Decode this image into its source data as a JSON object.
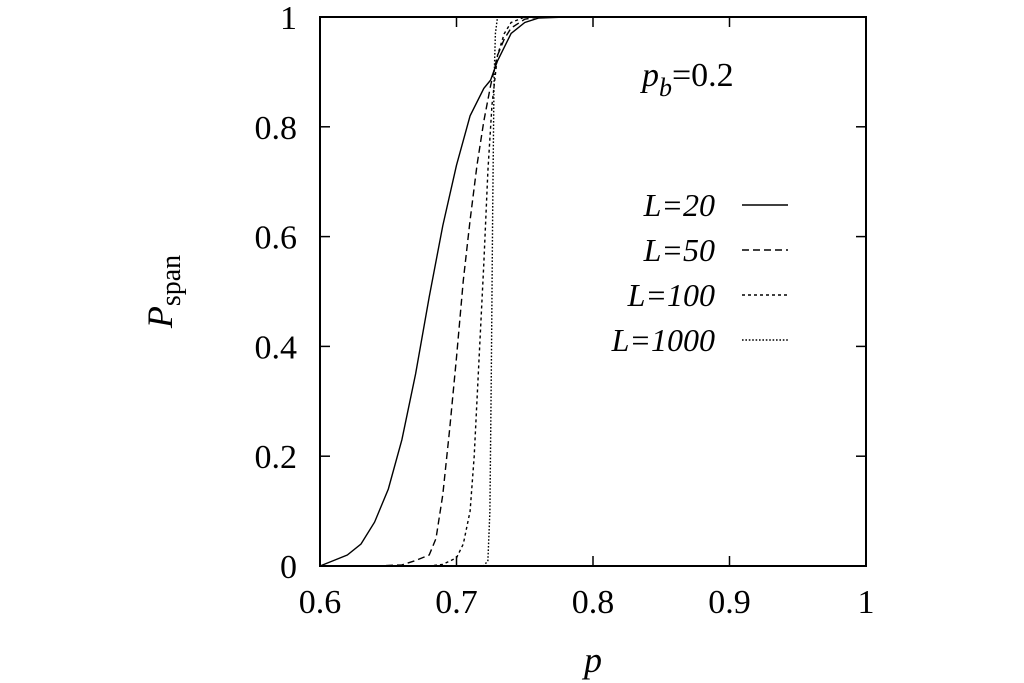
{
  "chart_data": {
    "type": "line",
    "title": "",
    "xlabel": "p",
    "ylabel": "P",
    "ylabel_sub": "span",
    "xlim": [
      0.6,
      1.0
    ],
    "ylim": [
      0,
      1
    ],
    "x_ticks": [
      0.6,
      0.7,
      0.8,
      0.9,
      1.0
    ],
    "x_tick_labels": [
      "0.6",
      "0.7",
      "0.8",
      "0.9",
      "1"
    ],
    "y_ticks": [
      0,
      0.2,
      0.4,
      0.6,
      0.8,
      1.0
    ],
    "y_tick_labels": [
      "0",
      "0.2",
      "0.4",
      "0.6",
      "0.8",
      "1"
    ],
    "grid": false,
    "legend_position": "top-right",
    "annotation": {
      "prefix": "p",
      "sub": "b",
      "suffix": "=0.2"
    },
    "series": [
      {
        "name": "L=20",
        "dash": "solid",
        "x": [
          0.6,
          0.61,
          0.62,
          0.63,
          0.64,
          0.65,
          0.66,
          0.67,
          0.68,
          0.69,
          0.7,
          0.71,
          0.72,
          0.725,
          0.73,
          0.74,
          0.75,
          0.76,
          0.78,
          0.8,
          0.85,
          0.9,
          1.0
        ],
        "y": [
          0.0,
          0.01,
          0.02,
          0.04,
          0.08,
          0.14,
          0.23,
          0.35,
          0.49,
          0.62,
          0.73,
          0.82,
          0.87,
          0.885,
          0.92,
          0.97,
          0.99,
          0.998,
          1.0,
          1.0,
          1.0,
          1.0,
          1.0
        ]
      },
      {
        "name": "L=50",
        "dash": "dashed",
        "x": [
          0.6,
          0.64,
          0.66,
          0.67,
          0.68,
          0.685,
          0.69,
          0.695,
          0.7,
          0.705,
          0.71,
          0.715,
          0.72,
          0.725,
          0.73,
          0.735,
          0.74,
          0.75,
          0.76,
          0.8,
          1.0
        ],
        "y": [
          0.0,
          0.0,
          0.002,
          0.01,
          0.02,
          0.05,
          0.13,
          0.25,
          0.38,
          0.52,
          0.63,
          0.73,
          0.81,
          0.875,
          0.93,
          0.96,
          0.98,
          0.996,
          1.0,
          1.0,
          1.0
        ]
      },
      {
        "name": "L=100",
        "dash": "dotted",
        "x": [
          0.6,
          0.68,
          0.69,
          0.7,
          0.705,
          0.71,
          0.713,
          0.716,
          0.72,
          0.723,
          0.726,
          0.73,
          0.735,
          0.74,
          0.75,
          1.0
        ],
        "y": [
          0.0,
          0.0,
          0.003,
          0.015,
          0.04,
          0.1,
          0.2,
          0.35,
          0.55,
          0.72,
          0.84,
          0.93,
          0.97,
          0.99,
          1.0,
          1.0
        ]
      },
      {
        "name": "L=1000",
        "dash": "dotted-fine",
        "x": [
          0.6,
          0.72,
          0.723,
          0.7245,
          0.7255,
          0.7265,
          0.7275,
          0.7285,
          0.73,
          0.74,
          1.0
        ],
        "y": [
          0.0,
          0.0,
          0.01,
          0.1,
          0.35,
          0.65,
          0.88,
          0.97,
          1.0,
          1.0,
          1.0
        ]
      }
    ]
  }
}
